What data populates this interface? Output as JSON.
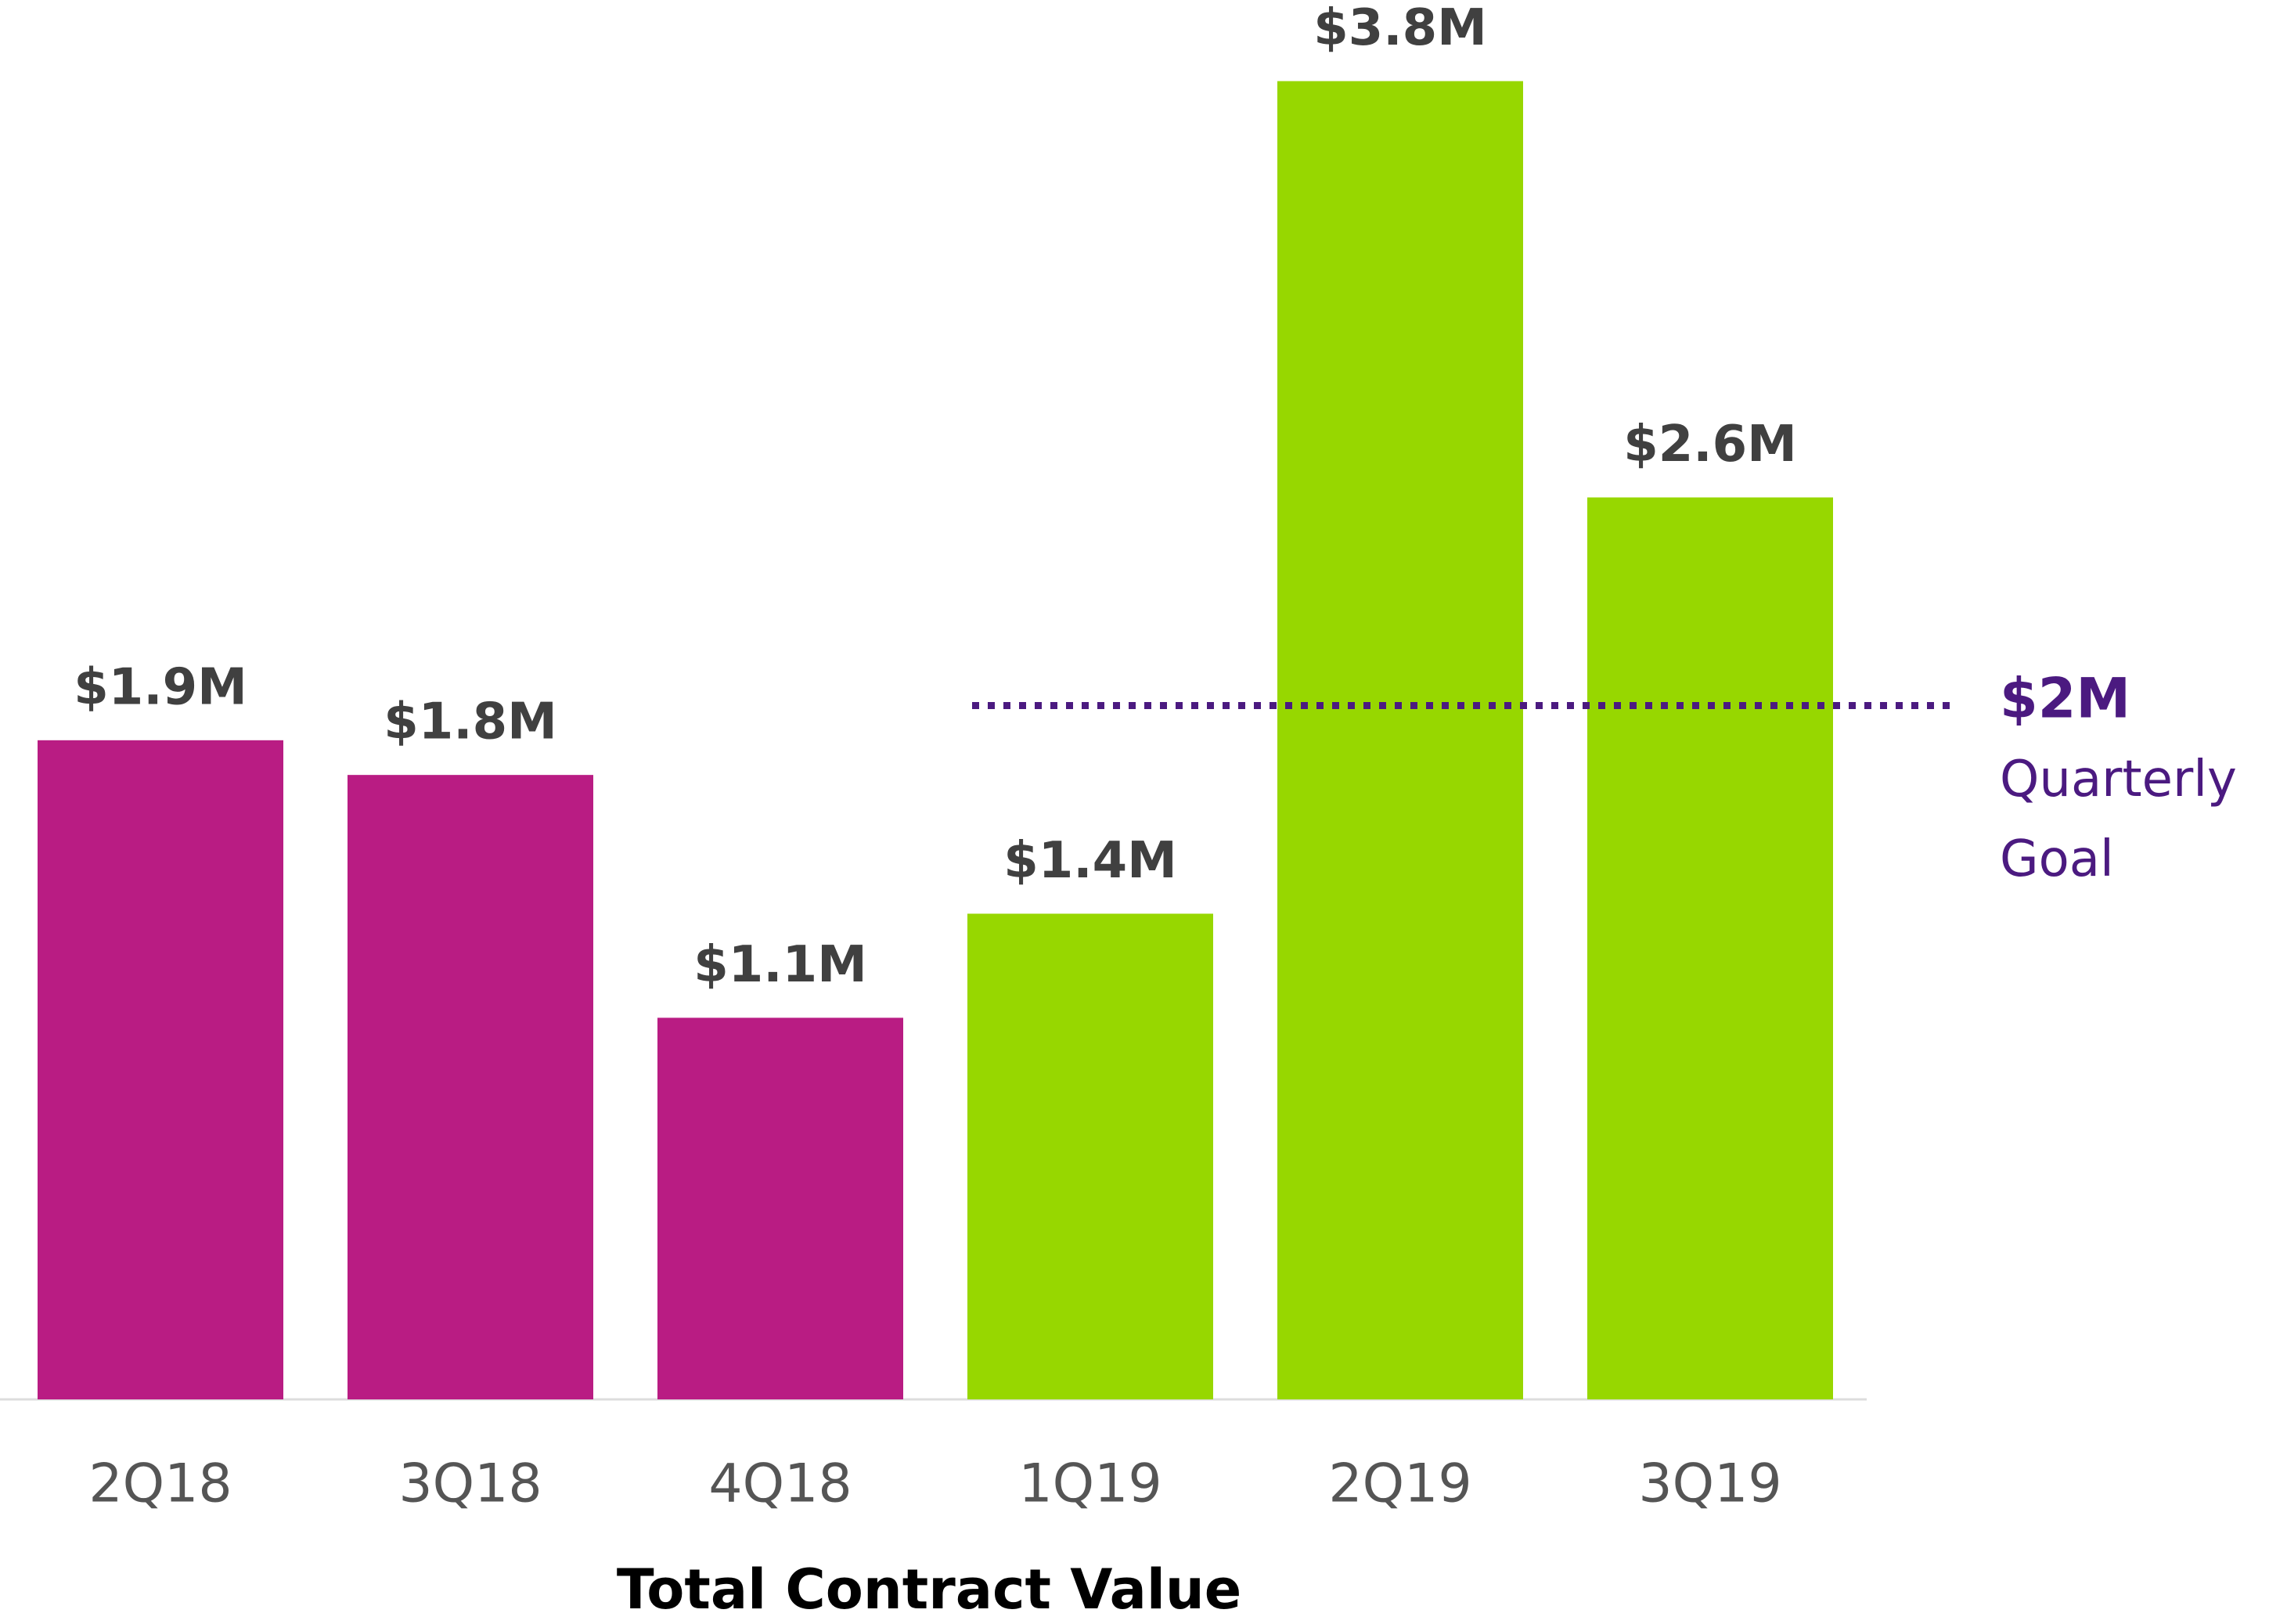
{
  "chart_data": {
    "type": "bar",
    "title": "Total Contract Value",
    "categories": [
      "2Q18",
      "3Q18",
      "4Q18",
      "1Q19",
      "2Q19",
      "3Q19"
    ],
    "values": [
      1.9,
      1.8,
      1.1,
      1.4,
      3.8,
      2.6
    ],
    "value_labels": [
      "$1.9M",
      "$1.8M",
      "$1.1M",
      "$1.4M",
      "$3.8M",
      "$2.6M"
    ],
    "colors": [
      "#b91c83",
      "#b91c83",
      "#b91c83",
      "#97d700",
      "#97d700",
      "#97d700"
    ],
    "ylim": [
      0,
      4
    ],
    "goal": {
      "value": 2,
      "label": "$2M",
      "text": [
        "Quarterly",
        "Goal"
      ],
      "color": "#4b1a80"
    }
  }
}
